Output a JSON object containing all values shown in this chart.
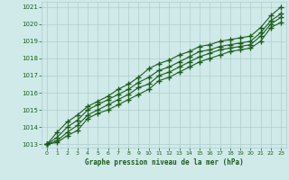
{
  "xlabel": "Graphe pression niveau de la mer (hPa)",
  "bg_color": "#d0eaea",
  "grid_color": "#b0cccc",
  "line_color": "#1a5c1a",
  "marker_color": "#1a5c1a",
  "xlim": [
    -0.5,
    23.5
  ],
  "ylim": [
    1012.8,
    1021.3
  ],
  "yticks": [
    1013,
    1014,
    1015,
    1016,
    1017,
    1018,
    1019,
    1020,
    1021
  ],
  "xticks": [
    0,
    1,
    2,
    3,
    4,
    5,
    6,
    7,
    8,
    9,
    10,
    11,
    12,
    13,
    14,
    15,
    16,
    17,
    18,
    19,
    20,
    21,
    22,
    23
  ],
  "lines": [
    [
      1013.0,
      1013.1,
      1013.5,
      1013.8,
      1014.5,
      1014.8,
      1015.0,
      1015.3,
      1015.6,
      1015.9,
      1016.2,
      1016.7,
      1016.9,
      1017.2,
      1017.5,
      1017.8,
      1018.0,
      1018.2,
      1018.4,
      1018.5,
      1018.6,
      1019.0,
      1019.8,
      1020.1
    ],
    [
      1013.0,
      1013.2,
      1013.7,
      1014.1,
      1014.7,
      1015.0,
      1015.3,
      1015.6,
      1015.9,
      1016.3,
      1016.5,
      1017.0,
      1017.2,
      1017.5,
      1017.8,
      1018.1,
      1018.3,
      1018.5,
      1018.6,
      1018.7,
      1018.8,
      1019.3,
      1020.0,
      1020.4
    ],
    [
      1013.0,
      1013.4,
      1014.0,
      1014.4,
      1015.0,
      1015.3,
      1015.6,
      1015.9,
      1016.2,
      1016.6,
      1016.9,
      1017.3,
      1017.5,
      1017.8,
      1018.1,
      1018.4,
      1018.5,
      1018.7,
      1018.8,
      1018.9,
      1019.0,
      1019.5,
      1020.2,
      1020.6
    ],
    [
      1013.0,
      1013.7,
      1014.3,
      1014.7,
      1015.2,
      1015.5,
      1015.8,
      1016.2,
      1016.5,
      1016.9,
      1017.4,
      1017.7,
      1017.9,
      1018.2,
      1018.4,
      1018.7,
      1018.8,
      1019.0,
      1019.1,
      1019.2,
      1019.3,
      1019.8,
      1020.5,
      1021.0
    ]
  ]
}
